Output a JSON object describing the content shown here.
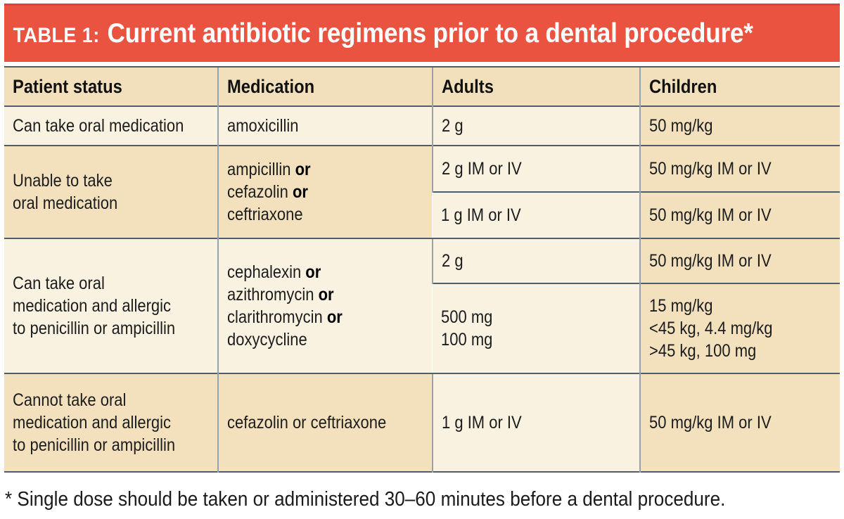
{
  "page": {
    "title_label": "TABLE 1:",
    "title_text": "Current antibiotic regimens prior to a dental procedure*",
    "footnote": "* Single dose should be taken or administered 30–60 minutes before a dental procedure."
  },
  "columns": [
    "Patient status",
    "Medication",
    "Adults",
    "Children"
  ],
  "rows": [
    {
      "shade": "light",
      "patient_status": [
        "Can take oral medication"
      ],
      "medication": [
        {
          "text": "amoxicillin",
          "bold_or": false
        }
      ],
      "doses": [
        {
          "adults": [
            "2 g"
          ],
          "children": [
            "50 mg/kg"
          ]
        }
      ]
    },
    {
      "shade": "tan",
      "patient_status": [
        "Unable to take",
        "oral medication"
      ],
      "medication": [
        {
          "text": "ampicillin",
          "bold_or": true
        },
        {
          "text": "cefazolin",
          "bold_or": true
        },
        {
          "text": "ceftriaxone",
          "bold_or": false
        }
      ],
      "doses": [
        {
          "adults": [
            "2 g IM or IV"
          ],
          "children": [
            "50 mg/kg IM or IV"
          ]
        },
        {
          "adults": [
            "1 g IM or IV"
          ],
          "children": [
            "50 mg/kg IM or IV"
          ]
        }
      ]
    },
    {
      "shade": "light",
      "patient_status": [
        "Can take oral",
        "medication and allergic",
        "to penicillin or ampicillin"
      ],
      "medication": [
        {
          "text": "cephalexin",
          "bold_or": true
        },
        {
          "text": "azithromycin",
          "bold_or": true
        },
        {
          "text": "clarithromycin",
          "bold_or": true
        },
        {
          "text": "doxycycline",
          "bold_or": false
        }
      ],
      "doses": [
        {
          "adults": [
            "2 g"
          ],
          "children": [
            "50 mg/kg IM or IV"
          ]
        },
        {
          "adults": [
            "500 mg",
            "100 mg"
          ],
          "children": [
            "15 mg/kg",
            "<45 kg, 4.4 mg/kg",
            ">45 kg, 100 mg"
          ]
        }
      ]
    },
    {
      "shade": "tan",
      "patient_status": [
        "Cannot take oral",
        "medication and allergic",
        "to penicillin or ampicillin"
      ],
      "medication": [
        {
          "text": "cefazolin or ceftriaxone",
          "bold_or": false
        }
      ],
      "doses": [
        {
          "adults": [
            "1 g IM or IV"
          ],
          "children": [
            "50 mg/kg IM or IV"
          ]
        }
      ]
    }
  ],
  "colors": {
    "header_bar": "#E95340",
    "header_bar_edge": "#D8452F",
    "title_text": "#FFFFFF",
    "column_header_bg": "#F2E0BC",
    "row_light": "#FAF2E1",
    "row_tan": "#F3E1BE",
    "border_dark": "#4E5E6A",
    "border_gray": "#99A1A9",
    "body_text": "#1C1C1C"
  },
  "chart_data": {
    "type": "table",
    "title": "TABLE 1: Current antibiotic regimens prior to a dental procedure*",
    "columns": [
      "Patient status",
      "Medication",
      "Adults",
      "Children"
    ],
    "rows": [
      [
        "Can take oral medication",
        "amoxicillin",
        "2 g",
        "50 mg/kg"
      ],
      [
        "Unable to take oral medication",
        "ampicillin or cefazolin or ceftriaxone",
        "2 g IM or IV",
        "50 mg/kg IM or IV"
      ],
      [
        "Unable to take oral medication",
        "ampicillin or cefazolin or ceftriaxone",
        "1 g IM or IV",
        "50 mg/kg IM or IV"
      ],
      [
        "Can take oral medication and allergic to penicillin or ampicillin",
        "cephalexin or azithromycin or clarithromycin or doxycycline",
        "2 g",
        "50 mg/kg IM or IV"
      ],
      [
        "Can take oral medication and allergic to penicillin or ampicillin",
        "cephalexin or azithromycin or clarithromycin or doxycycline",
        "500 mg / 100 mg",
        "15 mg/kg; <45 kg, 4.4 mg/kg; >45 kg, 100 mg"
      ],
      [
        "Cannot take oral medication and allergic to penicillin or ampicillin",
        "cefazolin or ceftriaxone",
        "1 g IM or IV",
        "50 mg/kg IM or IV"
      ]
    ],
    "footnote": "* Single dose should be taken or administered 30–60 minutes before a dental procedure."
  }
}
